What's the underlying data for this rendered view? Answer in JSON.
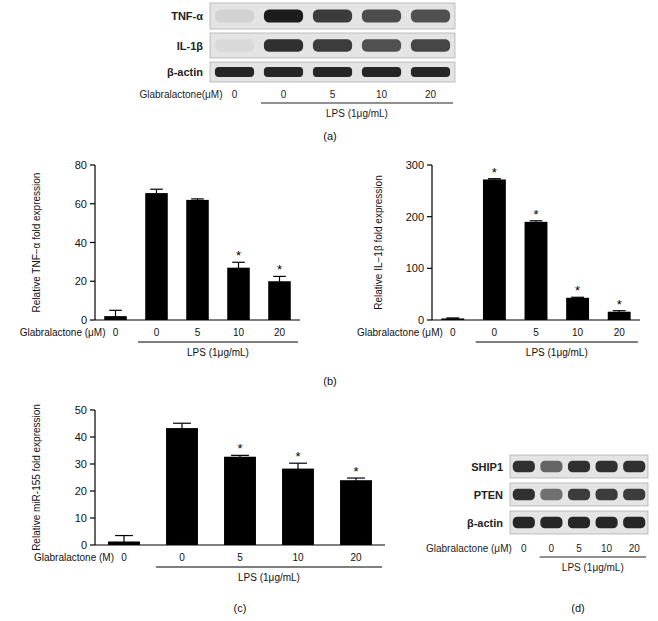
{
  "panel_labels": [
    "(a)",
    "(b)",
    "(c)",
    "(d)"
  ],
  "blots": [
    {
      "rows": [
        {
          "name": "TNF-α",
          "bands": [
            0.08,
            0.95,
            0.8,
            0.72,
            0.7
          ]
        },
        {
          "name": "IL-1β",
          "bands": [
            0.05,
            0.85,
            0.8,
            0.7,
            0.75
          ]
        },
        {
          "name": "β-actin",
          "bands": [
            0.9,
            0.9,
            0.9,
            0.9,
            0.9
          ]
        }
      ],
      "x_label": "Glabralactone(μM)",
      "doses": [
        0,
        0,
        5,
        10,
        20
      ],
      "group_label": "LPS (1μg/mL)"
    },
    {
      "rows": [
        {
          "name": "SHIP1",
          "bands": [
            0.85,
            0.6,
            0.85,
            0.85,
            0.85
          ]
        },
        {
          "name": "PTEN",
          "bands": [
            0.85,
            0.55,
            0.8,
            0.8,
            0.8
          ]
        },
        {
          "name": "β-actin",
          "bands": [
            0.9,
            0.9,
            0.9,
            0.9,
            0.9
          ]
        }
      ],
      "x_label": "Glabralactone (μM)",
      "doses": [
        0,
        0,
        5,
        10,
        20
      ],
      "group_label": "LPS (1μg/mL)"
    }
  ],
  "chart_data": [
    {
      "type": "bar",
      "categories": [
        0,
        0,
        5,
        10,
        20
      ],
      "values": [
        2,
        65.5,
        62,
        27,
        20
      ],
      "errors": [
        3,
        2,
        0.5,
        2.8,
        2.5
      ],
      "color": "#000000",
      "ylim": [
        0,
        80
      ],
      "yticks": [
        0,
        20,
        40,
        60,
        80
      ],
      "y_label": "Relative TNF−α fold expression",
      "x_label": "Glabralactone (μM)",
      "group_label": "LPS (1μg/mL)",
      "annotations": [
        {
          "index": 3,
          "text": "*"
        },
        {
          "index": 4,
          "text": "*"
        }
      ]
    },
    {
      "type": "bar",
      "categories": [
        0,
        0,
        5,
        10,
        20
      ],
      "values": [
        3,
        272,
        190,
        43,
        16
      ],
      "errors": [
        1,
        1.5,
        2,
        1,
        2
      ],
      "color": "#000000",
      "ylim": [
        0,
        300
      ],
      "yticks": [
        0,
        100,
        200,
        300
      ],
      "y_label": "Relative IL−1β fold expression",
      "x_label": "Glabralactone (μM)",
      "group_label": "LPS (1μg/mL)",
      "annotations": [
        {
          "index": 1,
          "text": "*"
        },
        {
          "index": 2,
          "text": "*"
        },
        {
          "index": 3,
          "text": "*"
        },
        {
          "index": 4,
          "text": "*"
        }
      ]
    },
    {
      "type": "bar",
      "categories": [
        0,
        0,
        5,
        10,
        20
      ],
      "values": [
        1.3,
        43.3,
        32.7,
        28.3,
        24
      ],
      "errors": [
        2.2,
        1.8,
        0.5,
        2,
        0.8
      ],
      "color": "#000000",
      "ylim": [
        0,
        50
      ],
      "yticks": [
        0,
        10,
        20,
        30,
        40,
        50
      ],
      "y_label": "Relative miR-155 fold expression",
      "x_label": "Glabralactone (M)",
      "group_label": "LPS (1μg/mL)",
      "annotations": [
        {
          "index": 2,
          "text": "*"
        },
        {
          "index": 3,
          "text": "*"
        },
        {
          "index": 4,
          "text": "*"
        }
      ]
    }
  ]
}
